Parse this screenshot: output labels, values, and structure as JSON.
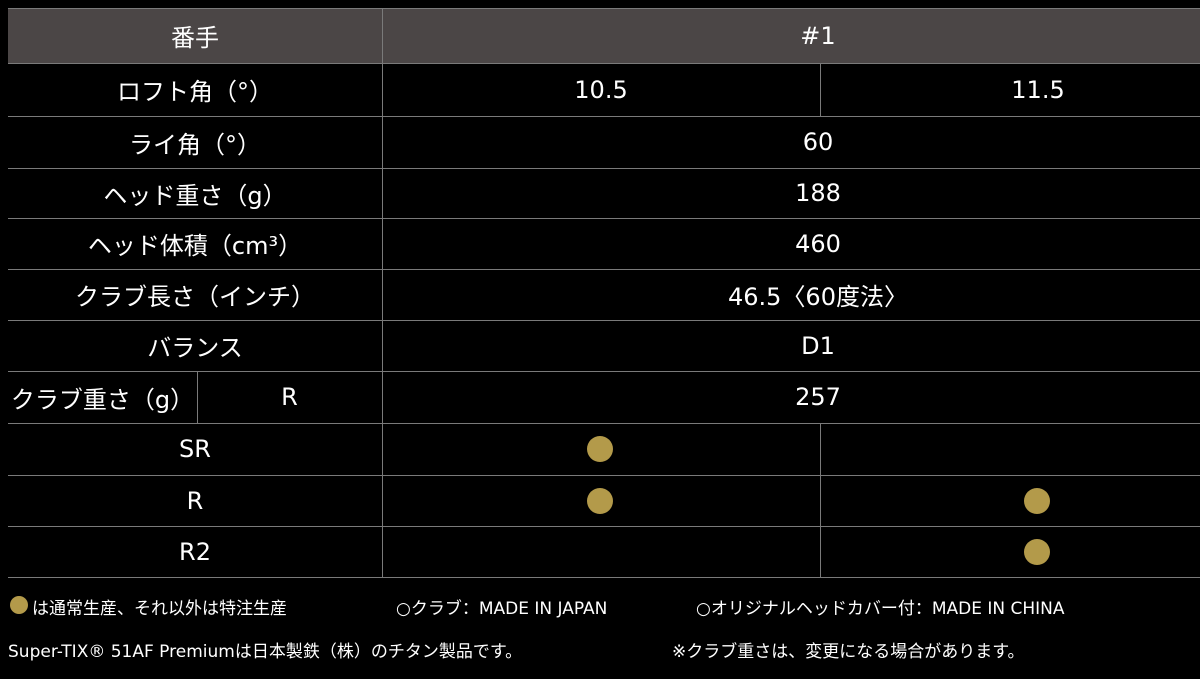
{
  "table": {
    "header": {
      "label": "番手",
      "value": "#1"
    },
    "rows": [
      {
        "label": "ロフト角（°）",
        "values": [
          "10.5",
          "11.5"
        ]
      },
      {
        "label": "ライ角（°）",
        "values": [
          "60"
        ]
      },
      {
        "label": "ヘッド重さ（g）",
        "values": [
          "188"
        ]
      },
      {
        "label": "ヘッド体積（cm³）",
        "values": [
          "460"
        ]
      },
      {
        "label": "クラブ長さ（インチ）",
        "values": [
          "46.5〈60度法〉"
        ]
      },
      {
        "label": "バランス",
        "values": [
          "D1"
        ]
      },
      {
        "label": "クラブ重さ（g）",
        "sub": "R",
        "values": [
          "257"
        ]
      },
      {
        "label": "SR",
        "available": [
          true,
          false
        ]
      },
      {
        "label": "R",
        "available": [
          true,
          true
        ]
      },
      {
        "label": "R2",
        "available": [
          false,
          true
        ]
      }
    ]
  },
  "notes": {
    "standard": "は通常生産、それ以外は特注生産",
    "club_origin": "○クラブ：MADE IN JAPAN",
    "cover_origin": "○オリジナルヘッドカバー付：MADE IN CHINA",
    "material": "Super-TIX® 51AF Premiumは日本製鉄（株）のチタン製品です。",
    "weight_note": "※クラブ重さは、変更になる場合があります。"
  }
}
